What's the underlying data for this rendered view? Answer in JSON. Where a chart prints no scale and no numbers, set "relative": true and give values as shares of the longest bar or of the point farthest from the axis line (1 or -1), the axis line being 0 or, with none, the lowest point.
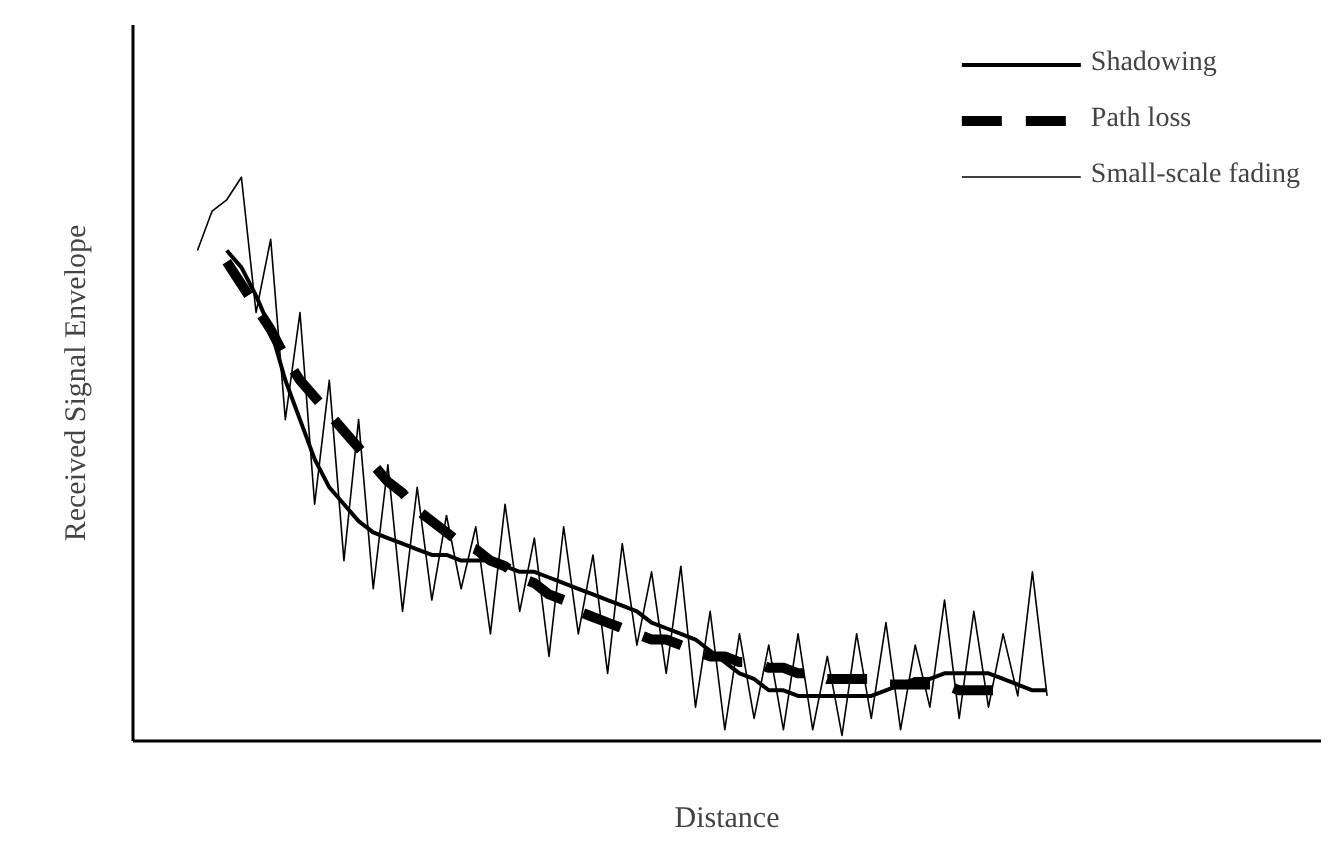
{
  "chart_data": {
    "type": "line",
    "relative": true,
    "xlabel": "Distance",
    "ylabel": "Received Signal Envelope",
    "legend": "top right",
    "grid": false,
    "categories": [
      null,
      null,
      null,
      null,
      null,
      null,
      null,
      null,
      null,
      null,
      null,
      null,
      null,
      null,
      null,
      null,
      null,
      null,
      null,
      null,
      null,
      null,
      null,
      null,
      null,
      null,
      null,
      null,
      null,
      null,
      null,
      null,
      null,
      null,
      null,
      null,
      null,
      null,
      null,
      null,
      null,
      null,
      null,
      null,
      null,
      null,
      null,
      null,
      null,
      null,
      null,
      null,
      null,
      null,
      null,
      null,
      null,
      null,
      null,
      null
    ],
    "series": [
      {
        "name": "Shadowing",
        "color": "#000000",
        "line_style": "solid",
        "values": [
          null,
          null,
          0.87,
          0.84,
          0.79,
          0.73,
          0.64,
          0.57,
          0.5,
          0.45,
          0.42,
          0.39,
          0.37,
          0.36,
          0.35,
          0.34,
          0.33,
          0.33,
          0.32,
          0.32,
          0.32,
          0.31,
          0.3,
          0.3,
          0.29,
          0.28,
          0.27,
          0.26,
          0.25,
          0.24,
          0.23,
          0.21,
          0.2,
          0.19,
          0.18,
          0.16,
          0.14,
          0.12,
          0.11,
          0.09,
          0.09,
          0.08,
          0.08,
          0.08,
          0.08,
          0.08,
          0.08,
          0.09,
          0.1,
          0.11,
          0.11,
          0.12,
          0.12,
          0.12,
          0.12,
          0.11,
          0.1,
          0.09,
          0.09,
          null
        ]
      },
      {
        "name": "Path loss",
        "color": "#000000",
        "line_style": "dashed",
        "values": [
          null,
          null,
          0.85,
          0.81,
          0.77,
          0.73,
          0.68,
          0.64,
          0.61,
          0.58,
          0.55,
          0.52,
          0.49,
          0.46,
          0.44,
          0.41,
          0.39,
          0.37,
          0.35,
          0.34,
          0.32,
          0.31,
          0.29,
          0.28,
          0.26,
          0.25,
          0.23,
          0.22,
          0.21,
          0.2,
          0.19,
          0.18,
          0.18,
          0.17,
          0.16,
          0.15,
          0.15,
          0.14,
          0.14,
          0.13,
          0.13,
          0.12,
          0.12,
          0.11,
          0.11,
          0.11,
          0.11,
          0.1,
          0.1,
          0.1,
          0.1,
          0.1,
          0.09,
          0.09,
          0.09,
          0.09,
          null,
          null,
          null,
          null
        ]
      },
      {
        "name": "Small-scale fading",
        "color": "#000000",
        "line_style": "solid",
        "values": [
          0.87,
          0.94,
          0.96,
          1.0,
          0.76,
          0.89,
          0.57,
          0.76,
          0.42,
          0.64,
          0.32,
          0.57,
          0.27,
          0.49,
          0.23,
          0.45,
          0.25,
          0.4,
          0.27,
          0.38,
          0.19,
          0.42,
          0.23,
          0.36,
          0.15,
          0.38,
          0.19,
          0.33,
          0.12,
          0.35,
          0.17,
          0.3,
          0.12,
          0.31,
          0.06,
          0.23,
          0.02,
          0.19,
          0.04,
          0.17,
          0.02,
          0.19,
          0.02,
          0.15,
          0.01,
          0.19,
          0.04,
          0.21,
          0.02,
          0.17,
          0.06,
          0.25,
          0.04,
          0.23,
          0.06,
          0.19,
          0.08,
          0.3,
          0.08,
          null
        ]
      }
    ]
  }
}
